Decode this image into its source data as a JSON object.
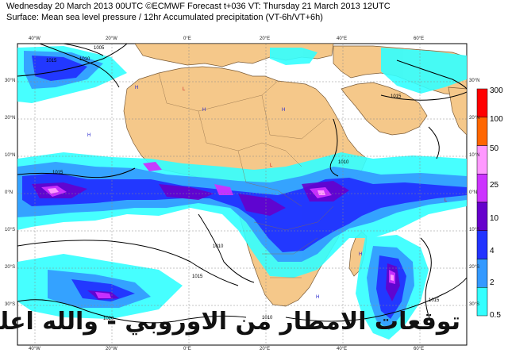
{
  "header": {
    "line1": "Wednesday 20 March 2013 00UTC ©ECMWF Forecast t+036 VT: Thursday 21 March 2013 12UTC",
    "line2": "Surface: Mean sea level pressure / 12hr Accumulated precipitation (VT-6h/VT+6h)"
  },
  "axes": {
    "top": [
      "40°W",
      "20°W",
      "0°E",
      "20°E",
      "40°E",
      "60°E"
    ],
    "bottom": [
      "40°W",
      "20°W",
      "0°E",
      "20°E",
      "40°E",
      "60°E"
    ],
    "left": [
      "30°N",
      "20°N",
      "10°N",
      "0°N",
      "10°S",
      "20°S",
      "30°S"
    ],
    "right": [
      "30°N",
      "20°N",
      "10°N",
      "0°N",
      "10°S",
      "20°S",
      "30°S"
    ]
  },
  "isobars": [
    "1015",
    "1010",
    "1005",
    "1015",
    "1010",
    "1015",
    "1020",
    "1010",
    "1015",
    "1010",
    "1015"
  ],
  "colorbar": {
    "levels": [
      "300",
      "100",
      "50",
      "25",
      "10",
      "4",
      "2",
      "0.5"
    ],
    "colors": [
      "#ff0000",
      "#ff6600",
      "#ff99ff",
      "#cc33ff",
      "#6600cc",
      "#2233ff",
      "#3399ff",
      "#33ffff"
    ]
  },
  "overlay_text": "توقعات الامطار من الاوروبي - والله اعلم",
  "colors": {
    "land": "#f5c88a",
    "sea": "#ffffff",
    "coast": "#7a5a35",
    "isobar": "#000000",
    "grid": "#888888"
  }
}
